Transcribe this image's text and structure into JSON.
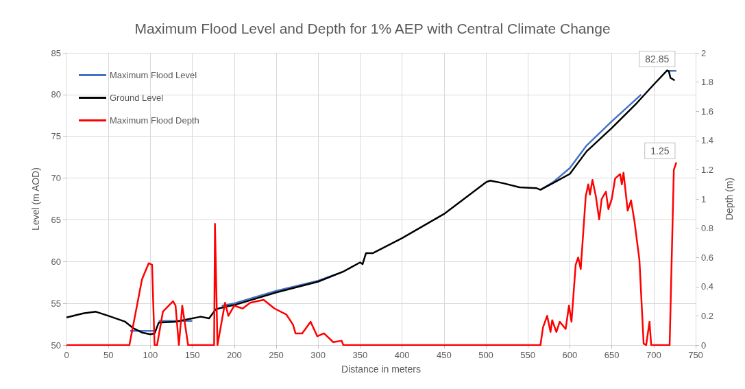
{
  "chart_data": {
    "type": "line",
    "title": "Maximum Flood Level and Depth for 1% AEP with Central Climate Change",
    "xlabel": "Distance in meters",
    "ylabel": "Level (m AOD)",
    "y2label": "Depth (m)",
    "xlim": [
      0,
      750
    ],
    "xticks": [
      0,
      50,
      100,
      150,
      200,
      250,
      300,
      350,
      400,
      450,
      500,
      550,
      600,
      650,
      700,
      750
    ],
    "ylim": [
      50,
      85
    ],
    "yticks": [
      50,
      55,
      60,
      65,
      70,
      75,
      80,
      85
    ],
    "y2lim": [
      0,
      2
    ],
    "y2ticks": [
      0,
      0.2,
      0.4,
      0.6,
      0.8,
      1,
      1.2,
      1.4,
      1.6,
      1.8,
      2
    ],
    "grid": true,
    "legend": "top left",
    "marker": "none",
    "line_style": "solid",
    "series": [
      {
        "name": "Maximum Flood Level",
        "color": "#4472c4",
        "x": [
          76,
          80,
          100,
          105,
          107,
          110,
          150,
          165,
          185,
          200,
          250,
          300,
          330,
          450,
          565,
          580,
          600,
          620,
          650,
          685,
          700,
          716,
          727
        ],
        "values": [
          51.7,
          51.7,
          51.7,
          51.7,
          null,
          52.9,
          52.9,
          null,
          54.7,
          55.0,
          56.5,
          57.7,
          58.8,
          null,
          68.6,
          69.5,
          71.2,
          73.9,
          76.8,
          80.0,
          null,
          82.85,
          82.85
        ],
        "value_labels": [
          null,
          null,
          null,
          null,
          null,
          null,
          null,
          null,
          null,
          null,
          null,
          null,
          null,
          null,
          null,
          null,
          null,
          null,
          null,
          null,
          null,
          null,
          "82.85"
        ]
      },
      {
        "name": "Ground Level",
        "color": "#000000",
        "x": [
          0,
          20,
          35,
          50,
          70,
          80,
          90,
          100,
          105,
          110,
          130,
          145,
          160,
          170,
          178,
          190,
          200,
          250,
          300,
          330,
          350,
          353,
          357,
          365,
          400,
          450,
          500,
          505,
          520,
          540,
          560,
          565,
          580,
          600,
          620,
          650,
          680,
          700,
          716,
          718,
          720,
          725
        ],
        "values": [
          53.3,
          53.8,
          54.0,
          53.5,
          52.8,
          52.0,
          51.5,
          51.3,
          51.4,
          52.7,
          52.8,
          53.1,
          53.4,
          53.2,
          54.3,
          54.6,
          54.8,
          56.3,
          57.6,
          58.8,
          59.9,
          59.7,
          61.0,
          61.0,
          62.8,
          65.7,
          69.5,
          69.7,
          69.4,
          68.9,
          68.8,
          68.6,
          69.4,
          70.5,
          73.2,
          76.0,
          79.0,
          81.2,
          82.9,
          82.8,
          82.0,
          81.7
        ]
      },
      {
        "name": "Maximum Flood Depth",
        "color": "#ff0000",
        "axis": "y2",
        "x": [
          0,
          75,
          90,
          98,
          102,
          105,
          108,
          115,
          127,
          130,
          134,
          138,
          145,
          176,
          177,
          180,
          189,
          193,
          200,
          210,
          219,
          235,
          248,
          262,
          270,
          273,
          281,
          291,
          299,
          307,
          318,
          328,
          330,
          565,
          568,
          573,
          577,
          579,
          584,
          588,
          595,
          599,
          602,
          607,
          610,
          613,
          619,
          622,
          624,
          627,
          631,
          635,
          638,
          643,
          646,
          650,
          654,
          660,
          662,
          664,
          669,
          673,
          677,
          683,
          688,
          691,
          695,
          697,
          719,
          724,
          727
        ],
        "values": [
          0,
          0,
          0.45,
          0.56,
          0.55,
          0,
          0,
          0.23,
          0.3,
          0.27,
          0,
          0.27,
          0,
          0,
          0.83,
          0,
          0.29,
          0.2,
          0.27,
          0.25,
          0.29,
          0.31,
          0.25,
          0.21,
          0.14,
          0.08,
          0.08,
          0.16,
          0.06,
          0.08,
          0.02,
          0.03,
          0,
          0,
          0.12,
          0.2,
          0.09,
          0.17,
          0.09,
          0.16,
          0.11,
          0.27,
          0.16,
          0.55,
          0.6,
          0.52,
          1.02,
          1.1,
          1.03,
          1.13,
          1.02,
          0.86,
          1.0,
          1.05,
          0.93,
          1.0,
          1.14,
          1.17,
          1.1,
          1.18,
          0.92,
          0.99,
          0.85,
          0.58,
          0.01,
          0,
          0.16,
          0,
          0,
          1.2,
          1.25
        ],
        "value_labels": [
          null,
          null,
          null,
          null,
          null,
          null,
          null,
          null,
          null,
          null,
          null,
          null,
          null,
          null,
          null,
          null,
          null,
          null,
          null,
          null,
          null,
          null,
          null,
          null,
          null,
          null,
          null,
          null,
          null,
          null,
          null,
          null,
          null,
          null,
          null,
          null,
          null,
          null,
          null,
          null,
          null,
          null,
          null,
          null,
          null,
          null,
          null,
          null,
          null,
          null,
          null,
          null,
          null,
          null,
          null,
          null,
          null,
          null,
          null,
          null,
          null,
          null,
          null,
          null,
          null,
          null,
          null,
          null,
          null,
          null,
          "1.25"
        ]
      }
    ]
  }
}
